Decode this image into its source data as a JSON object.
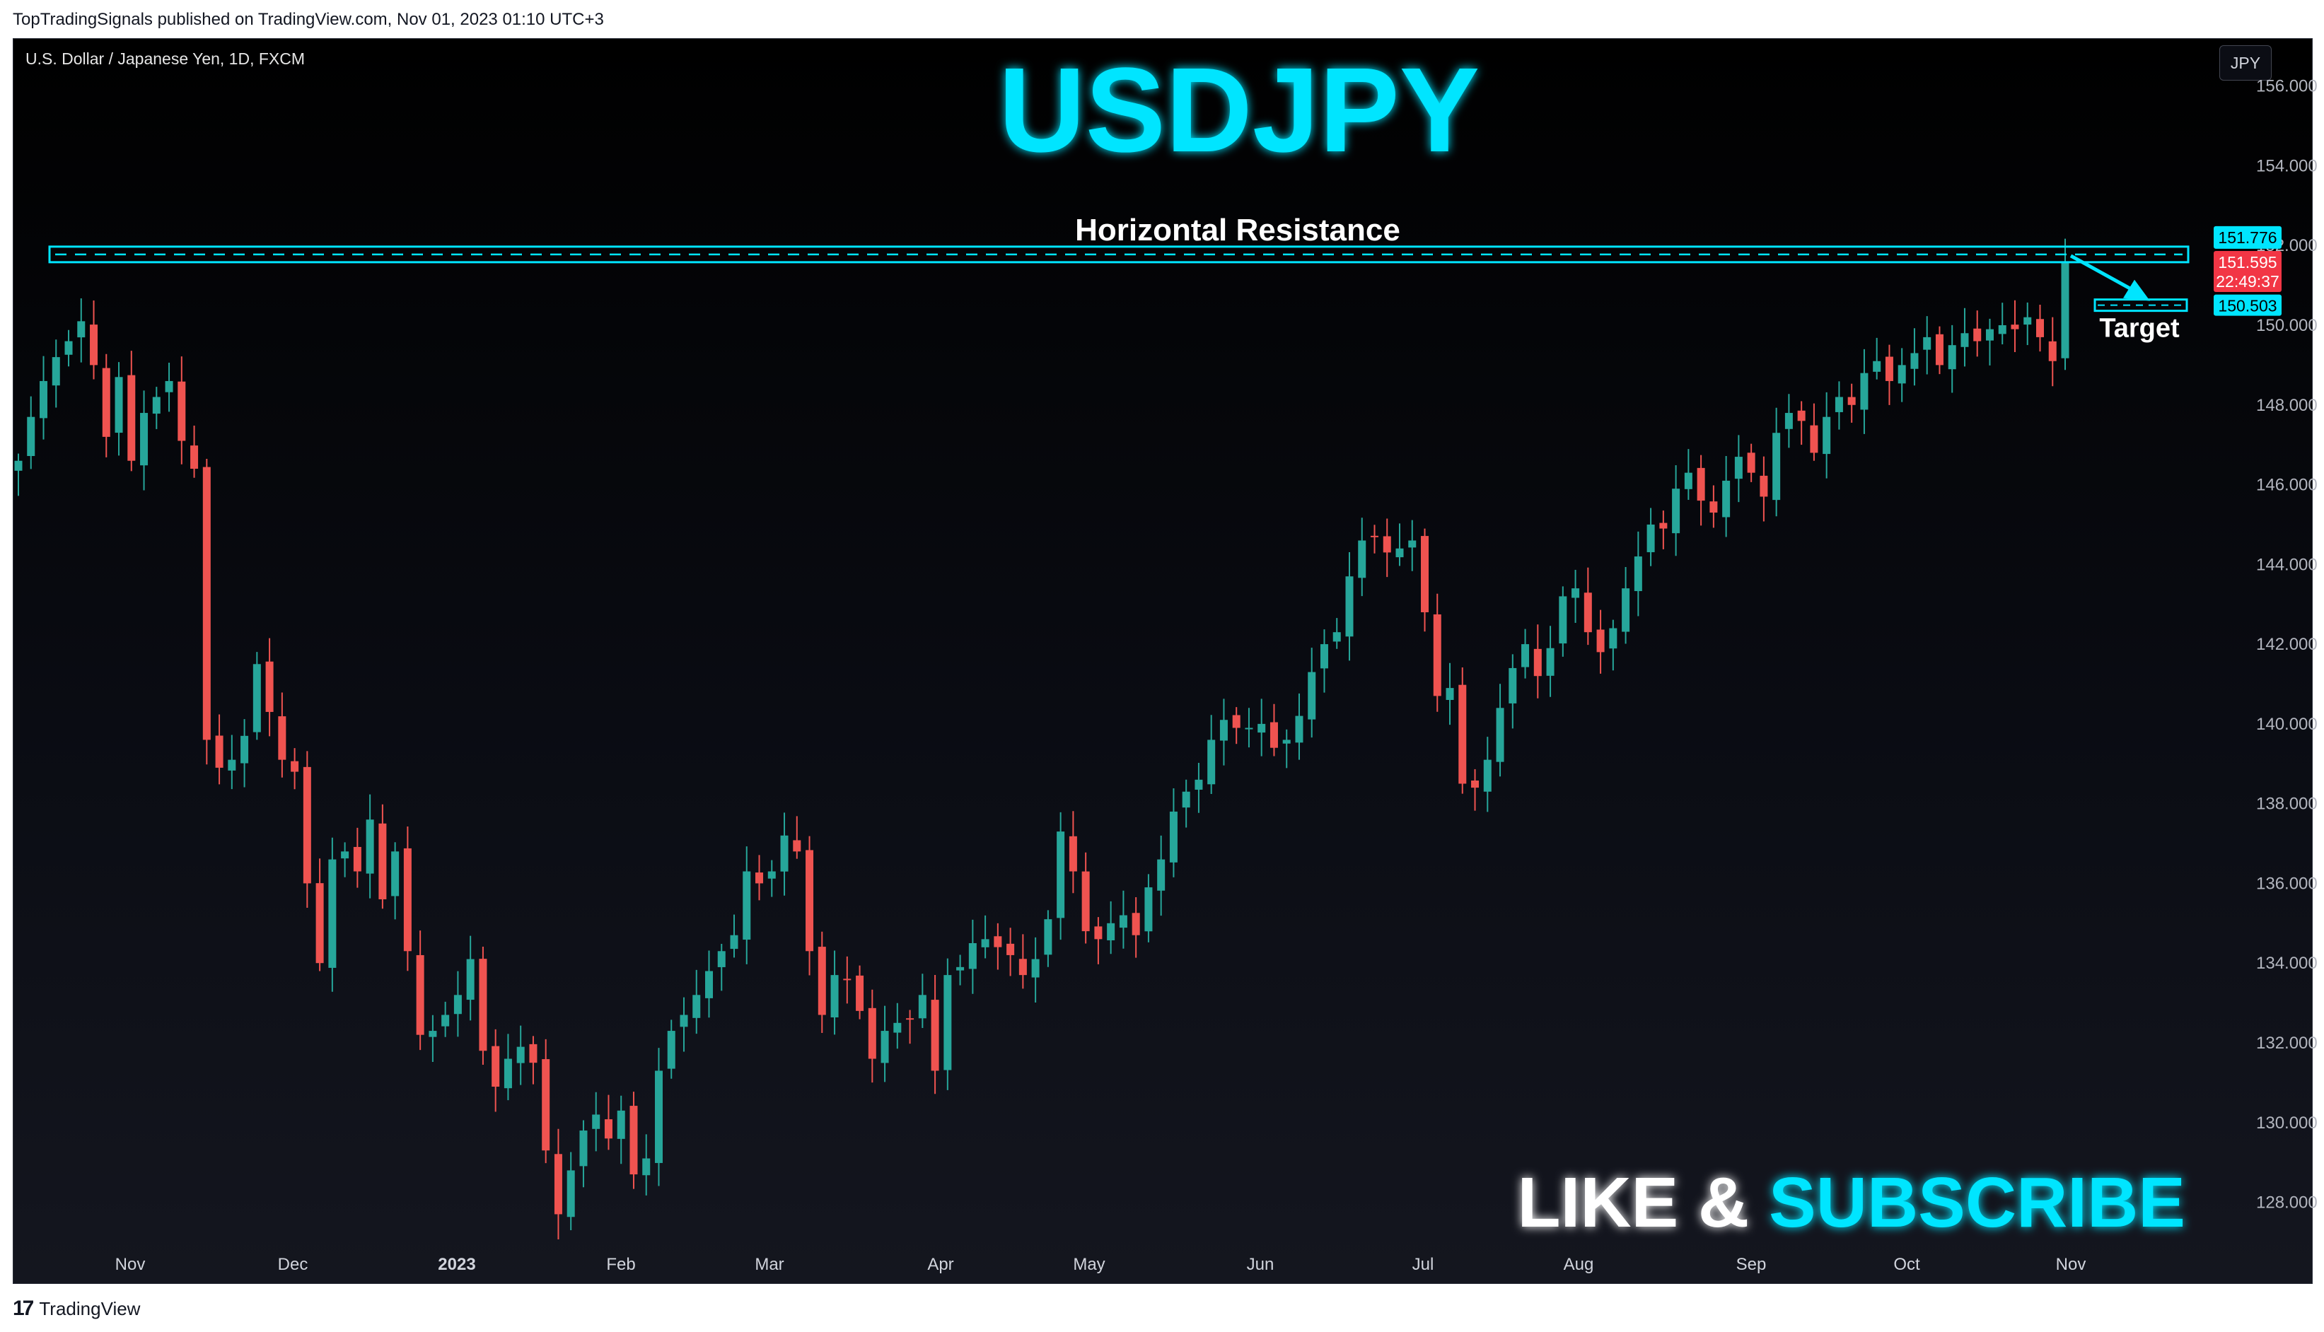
{
  "header": {
    "published_line": "TopTradingSignals published on TradingView.com, Nov 01, 2023 01:10 UTC+3"
  },
  "chart_header": {
    "symbol_line": "U.S. Dollar / Japanese Yen, 1D, FXCM",
    "currency": "JPY"
  },
  "overlay_text": {
    "title": "USDJPY",
    "resistance_label": "Horizontal Resistance",
    "target_label": "Target",
    "cta_like": "LIKE & ",
    "cta_subscribe": "SUBSCRIBE"
  },
  "price_tags": {
    "resistance": "151.776",
    "last_price": "151.595",
    "countdown": "22:49:37",
    "target": "150.503"
  },
  "footer": {
    "brand": "TradingView",
    "logo_glyph": "17"
  },
  "colors": {
    "up": "#26a69a",
    "down": "#ef5350",
    "accent": "#00e5ff",
    "last_price_tag": "#f23645"
  },
  "chart_data": {
    "type": "candlestick",
    "y_axis_ticks": [
      "156.000",
      "154.000",
      "152.000",
      "150.000",
      "148.000",
      "146.000",
      "144.000",
      "142.000",
      "140.000",
      "138.000",
      "136.000",
      "134.000",
      "132.000",
      "130.000",
      "128.000"
    ],
    "ylim": [
      127.3,
      157.2
    ],
    "x_axis_labels": [
      "Nov",
      "Dec",
      "2023",
      "Feb",
      "Mar",
      "Apr",
      "May",
      "Jun",
      "Jul",
      "Aug",
      "Sep",
      "Oct",
      "Nov"
    ],
    "levels": {
      "horizontal_resistance": 151.776,
      "target": 150.503,
      "last": 151.595
    },
    "series": [
      {
        "values": [
          146.6,
          147.7,
          148.6,
          149.2,
          149.6,
          150.1,
          149.0,
          147.2,
          148.7,
          146.6,
          147.8,
          148.2,
          148.6,
          147.1,
          146.4,
          139.6,
          138.9,
          139.1,
          139.7,
          141.5,
          140.3,
          139.1,
          138.8,
          136.0,
          134.0,
          136.6,
          136.8,
          136.3,
          137.6,
          135.6,
          136.8,
          134.3,
          132.2,
          132.3,
          132.7,
          133.2,
          134.1,
          131.8,
          130.9,
          131.6,
          131.9,
          131.5,
          129.3,
          127.7,
          128.8,
          129.8,
          130.2,
          129.6,
          130.3,
          128.7,
          129.1,
          131.3,
          132.3,
          132.7,
          133.2,
          133.8,
          134.3,
          134.7,
          136.3,
          136.0,
          136.3,
          137.2,
          136.8,
          134.3,
          132.7,
          133.7,
          133.6,
          132.8,
          131.6,
          132.3,
          132.5,
          132.6,
          133.2,
          131.3,
          133.7,
          133.9,
          134.5,
          134.6,
          134.4,
          134.2,
          133.7,
          134.1,
          135.1,
          137.3,
          136.3,
          134.8,
          134.6,
          135.0,
          135.2,
          134.7,
          135.9,
          136.6,
          137.8,
          138.3,
          138.6,
          139.6,
          140.1,
          139.9,
          139.9,
          140.0,
          139.4,
          139.6,
          140.2,
          141.3,
          142.0,
          142.3,
          143.7,
          144.6,
          144.7,
          144.3,
          144.4,
          144.6,
          142.8,
          140.7,
          140.9,
          138.5,
          138.4,
          139.1,
          140.4,
          141.4,
          142.0,
          141.2,
          141.9,
          143.2,
          143.4,
          142.3,
          141.8,
          142.4,
          143.4,
          144.2,
          145.0,
          144.9,
          145.9,
          146.3,
          145.6,
          145.3,
          146.1,
          146.7,
          146.3,
          145.7,
          147.3,
          147.8,
          147.6,
          146.8,
          147.7,
          148.2,
          148.0,
          148.8,
          149.1,
          148.6,
          149.0,
          149.3,
          149.7,
          149.0,
          149.5,
          149.8,
          149.6,
          149.9,
          150.0,
          149.9,
          150.2,
          149.7,
          149.1,
          151.6
        ]
      }
    ]
  }
}
